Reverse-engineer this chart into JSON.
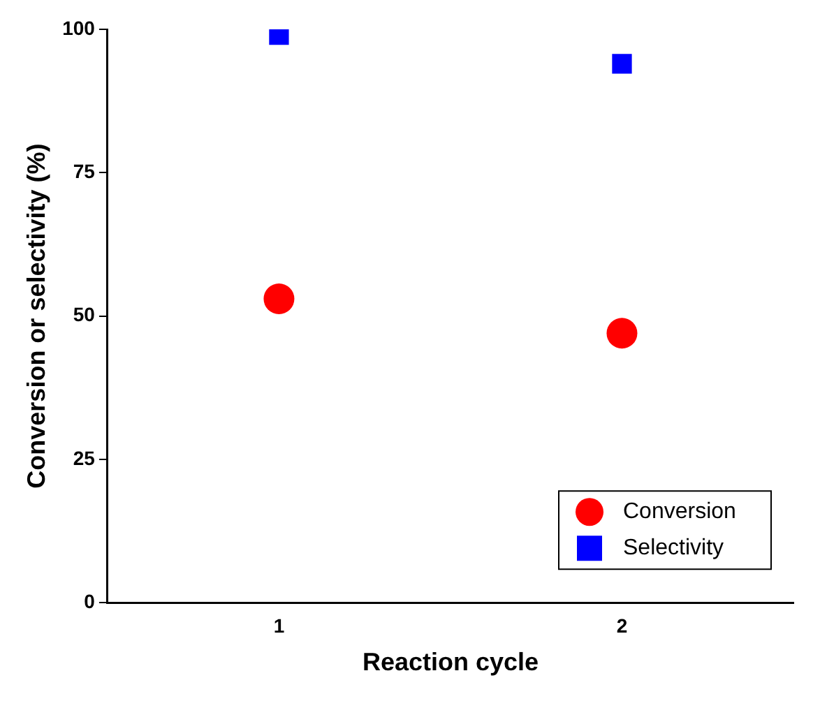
{
  "chart_data": {
    "type": "scatter",
    "xlabel": "Reaction cycle",
    "ylabel": "Conversion or selectivity (%)",
    "x": [
      1,
      2
    ],
    "series": [
      {
        "name": "Conversion",
        "color": "#ff0000",
        "values": [
          53,
          47
        ],
        "marker": "circle"
      },
      {
        "name": "Selectivity",
        "color": "#0000ff",
        "values": [
          99,
          94
        ],
        "marker": "square"
      }
    ],
    "xlim": [
      0.5,
      2.5
    ],
    "xticks": [
      1,
      2
    ],
    "ylim": [
      0,
      100
    ],
    "yticks": [
      0,
      25,
      50,
      75,
      100
    ],
    "grid": false,
    "legend": "bottom right"
  }
}
